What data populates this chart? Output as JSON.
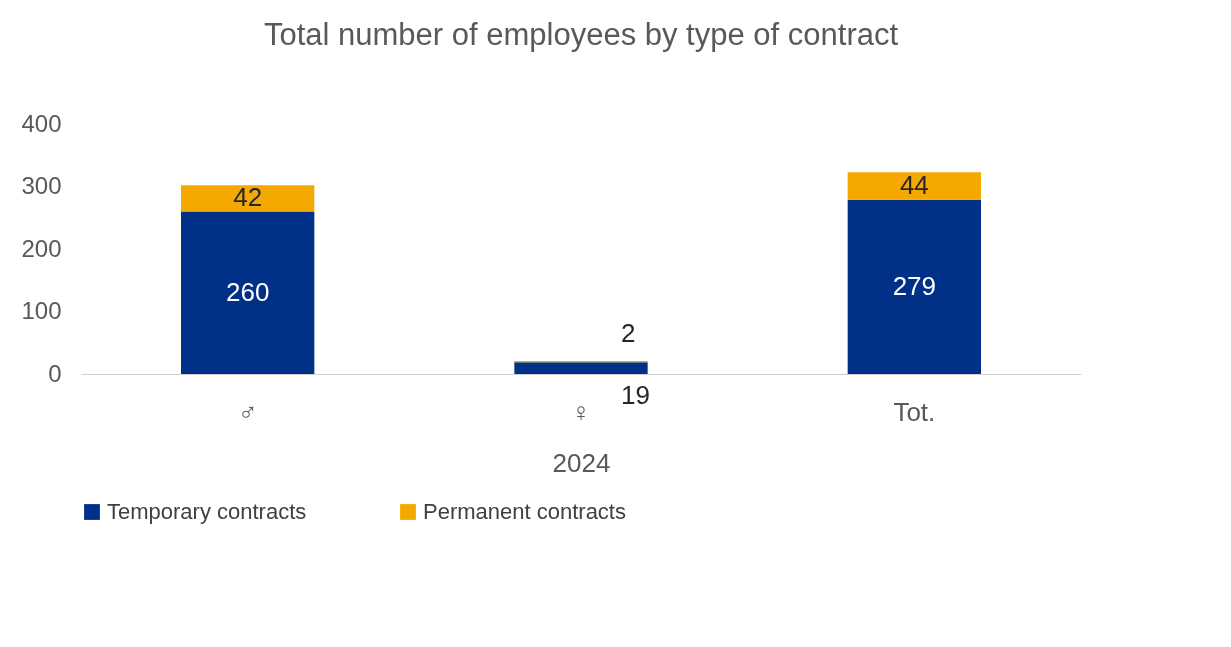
{
  "chart_data": {
    "type": "bar",
    "stacked": true,
    "title": "Total number of employees by type of contract",
    "xlabel": "2024",
    "categories": [
      "♂",
      "♀",
      "Tot."
    ],
    "series": [
      {
        "name": "Temporary contracts",
        "color": "#003087",
        "values": [
          260,
          19,
          279
        ]
      },
      {
        "name": "Permanent contracts",
        "color": "#f5a800",
        "values": [
          42,
          2,
          44
        ]
      }
    ],
    "ylim": [
      0,
      400
    ],
    "yticks": [
      0,
      100,
      200,
      300,
      400
    ],
    "grid": false,
    "legend": "bottom left",
    "data_labels": true
  }
}
